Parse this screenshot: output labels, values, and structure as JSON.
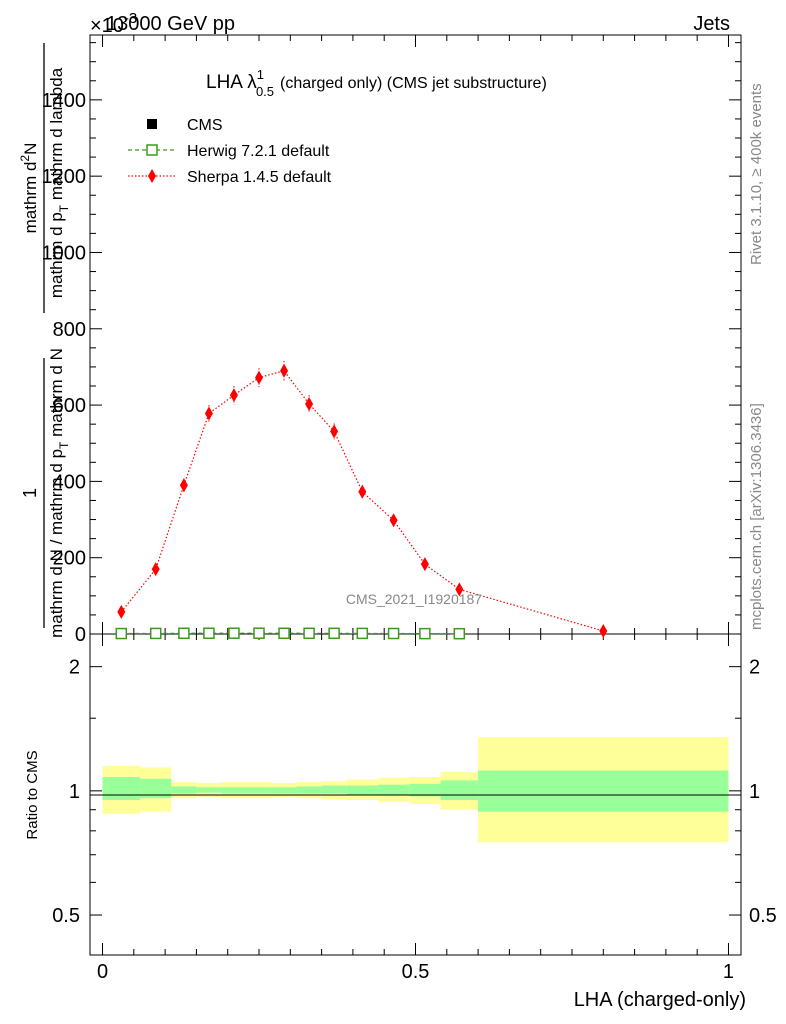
{
  "header": {
    "left": "13000 GeV pp",
    "right": "Jets",
    "exponent_prefix": "×10",
    "exponent_power": "-3"
  },
  "plot_title": {
    "main": "LHA λ",
    "sup": "1",
    "sub": "0.5",
    "suffix": "(charged only) (CMS jet substructure)"
  },
  "side_labels": {
    "rivet": "Rivet 3.1.10, ≥ 400k events",
    "mcplots": "mcplots.cern.ch [arXiv:1306.3436]"
  },
  "watermark": "CMS_2021_I1920187",
  "y_axis_label": {
    "numerator_1": "1",
    "denominator_1": "mathrm d N / mathrm d p",
    "denominator_1_sub": "T",
    "denominator_1_tail": " mathrm d N",
    "numerator_2": "mathrm d",
    "numerator_2_sup": "2",
    "numerator_2_tail": "N",
    "denominator_2": "mathrm d p",
    "denominator_2_sub": "T",
    "denominator_2_tail": " mathrm d lambda"
  },
  "ratio_y_label": "Ratio to CMS",
  "x_axis_label": "LHA (charged-only)",
  "legend": [
    {
      "key": "cms",
      "label": "CMS",
      "color": "#000000"
    },
    {
      "key": "herwig",
      "label": "Herwig 7.2.1 default",
      "color": "#3a9a1a"
    },
    {
      "key": "sherpa",
      "label": "Sherpa 1.4.5 default",
      "color": "#ff0000"
    }
  ],
  "chart_data": {
    "type": "line",
    "main_panel": {
      "xlim": [
        -0.02,
        1.02
      ],
      "ylim": [
        0,
        1570
      ],
      "y_ticks": [
        0,
        200,
        400,
        600,
        800,
        1000,
        1200,
        1400
      ],
      "y_tick_labels": [
        "0",
        "200",
        "400",
        "600",
        "800",
        "1000",
        "1200",
        "1400"
      ],
      "series": [
        {
          "name": "CMS",
          "style": "square-marker",
          "color": "#000000",
          "x": [
            0.03,
            0.085,
            0.13,
            0.17,
            0.21,
            0.25,
            0.29,
            0.33,
            0.37,
            0.415,
            0.465,
            0.515,
            0.57
          ],
          "y": [
            1.2,
            1.5,
            1.9,
            2.0,
            2.1,
            2.1,
            2.0,
            1.9,
            1.8,
            1.6,
            1.3,
            1.0,
            0.8
          ]
        },
        {
          "name": "Herwig 7.2.1 default",
          "style": "open-square-dashed",
          "color": "#3a9a1a",
          "x": [
            0.03,
            0.085,
            0.13,
            0.17,
            0.21,
            0.25,
            0.29,
            0.33,
            0.37,
            0.415,
            0.465,
            0.515,
            0.57
          ],
          "y": [
            1.2,
            1.5,
            1.9,
            2.0,
            2.1,
            2.1,
            2.0,
            1.9,
            1.8,
            1.6,
            1.3,
            1.0,
            0.8
          ]
        },
        {
          "name": "Sherpa 1.4.5 default",
          "style": "diamond-dotted",
          "color": "#ff0000",
          "x": [
            0.03,
            0.085,
            0.13,
            0.17,
            0.21,
            0.25,
            0.29,
            0.33,
            0.37,
            0.415,
            0.465,
            0.515,
            0.57,
            0.8
          ],
          "y": [
            58,
            170,
            390,
            578,
            626,
            672,
            690,
            603,
            531,
            373,
            298,
            183,
            117,
            8
          ],
          "yerr": [
            10,
            14,
            18,
            22,
            24,
            25,
            26,
            23,
            21,
            17,
            15,
            12,
            9,
            3
          ]
        }
      ]
    },
    "ratio_panel": {
      "xlim": [
        -0.02,
        1.02
      ],
      "ylim_log": [
        0.4,
        2.4
      ],
      "y_ticks": [
        0.5,
        1,
        2
      ],
      "y_tick_labels": [
        "0.5",
        "1",
        "2"
      ],
      "x_ticks": [
        0,
        0.5,
        1
      ],
      "x_tick_labels": [
        "0",
        "0.5",
        "1"
      ],
      "bin_edges": [
        0.0,
        0.06,
        0.11,
        0.15,
        0.19,
        0.23,
        0.27,
        0.31,
        0.35,
        0.39,
        0.44,
        0.49,
        0.54,
        0.6,
        1.0
      ],
      "inner_band": [
        [
          0.95,
          1.08
        ],
        [
          0.96,
          1.07
        ],
        [
          0.985,
          1.025
        ],
        [
          0.99,
          1.02
        ],
        [
          0.985,
          1.02
        ],
        [
          0.985,
          1.02
        ],
        [
          0.985,
          1.02
        ],
        [
          0.985,
          1.025
        ],
        [
          0.985,
          1.03
        ],
        [
          0.98,
          1.03
        ],
        [
          0.975,
          1.035
        ],
        [
          0.97,
          1.04
        ],
        [
          0.95,
          1.06
        ],
        [
          0.89,
          1.12
        ]
      ],
      "outer_band": [
        [
          0.88,
          1.15
        ],
        [
          0.89,
          1.14
        ],
        [
          0.96,
          1.05
        ],
        [
          0.965,
          1.045
        ],
        [
          0.96,
          1.05
        ],
        [
          0.96,
          1.05
        ],
        [
          0.965,
          1.045
        ],
        [
          0.96,
          1.05
        ],
        [
          0.955,
          1.055
        ],
        [
          0.95,
          1.065
        ],
        [
          0.94,
          1.075
        ],
        [
          0.93,
          1.08
        ],
        [
          0.9,
          1.11
        ],
        [
          0.75,
          1.35
        ]
      ],
      "inner_color": "#99ff99",
      "outer_color": "#ffff99"
    }
  }
}
